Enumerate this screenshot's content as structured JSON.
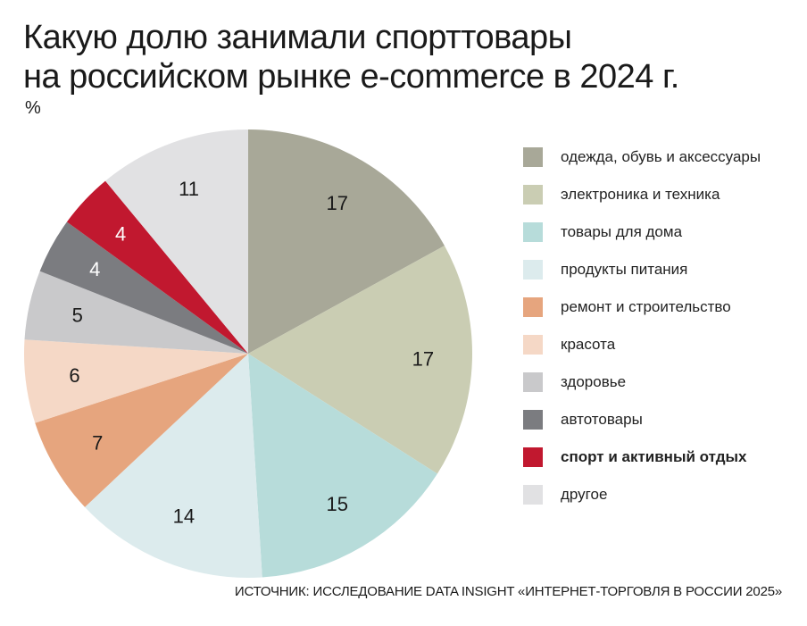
{
  "title": {
    "line1": "Какую долю занимали спорттовары",
    "line2": "на российском рынке e-commerce в 2024 г."
  },
  "unit": "%",
  "source": "ИСТОЧНИК: ИССЛЕДОВАНИЕ DATA INSIGHT «ИНТЕРНЕТ-ТОРГОВЛЯ В РОССИИ 2025»",
  "chart_data": {
    "type": "pie",
    "title": "Какую долю занимали спорттовары на российском рынке e-commerce в 2024 г.",
    "unit": "%",
    "categories": [
      "одежда, обувь и аксессуары",
      "электроника и техника",
      "товары для дома",
      "продукты питания",
      "ремонт и строительство",
      "красота",
      "здоровье",
      "автотовары",
      "спорт и активный отдых",
      "другое"
    ],
    "values": [
      17,
      17,
      15,
      14,
      7,
      6,
      5,
      4,
      4,
      11
    ],
    "colors": [
      "#a8a898",
      "#cacdb3",
      "#b7dcda",
      "#dcebed",
      "#e6a57e",
      "#f5d8c6",
      "#c9c9cb",
      "#7b7c80",
      "#c1182f",
      "#e1e1e3"
    ],
    "label_colors": [
      "#1a1a1a",
      "#1a1a1a",
      "#1a1a1a",
      "#1a1a1a",
      "#1a1a1a",
      "#1a1a1a",
      "#1a1a1a",
      "#ffffff",
      "#ffffff",
      "#1a1a1a"
    ],
    "highlight": "спорт и активный отдых",
    "legend_position": "right"
  }
}
